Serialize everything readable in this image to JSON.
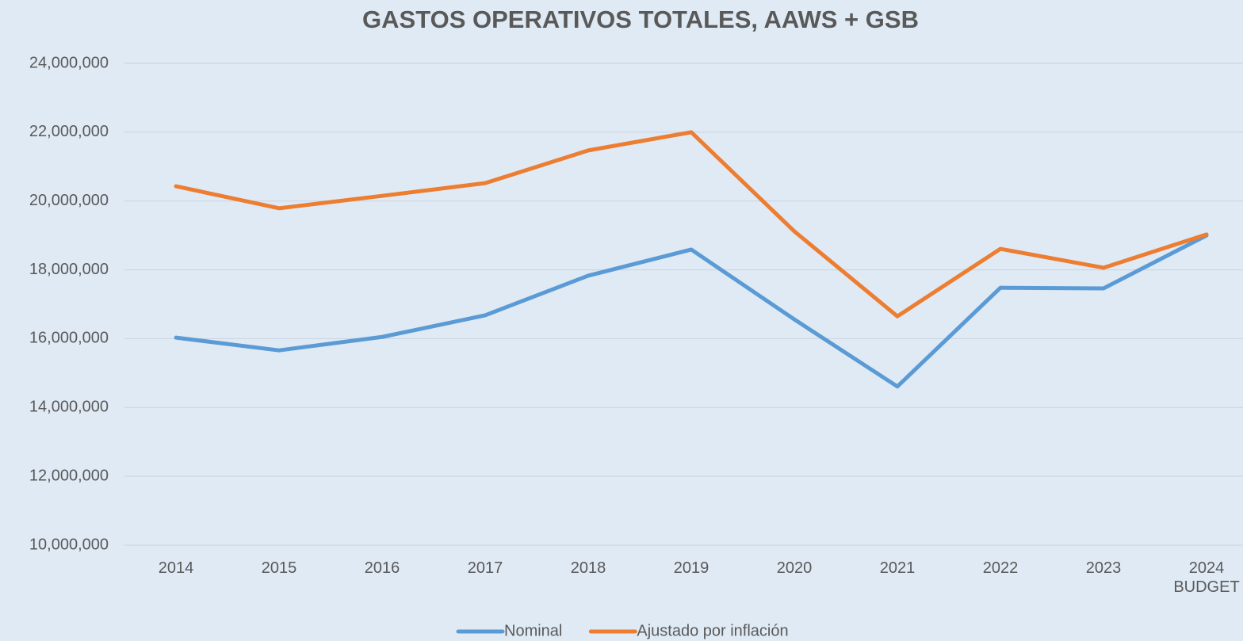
{
  "chart_data": {
    "type": "line",
    "title": "GASTOS OPERATIVOS TOTALES, AAWS + GSB",
    "categories": [
      "2014",
      "2015",
      "2016",
      "2017",
      "2018",
      "2019",
      "2020",
      "2021",
      "2022",
      "2023",
      "2024 BUDGET"
    ],
    "series": [
      {
        "name": "Nominal",
        "color": "#5b9bd5",
        "values": [
          16030000,
          15660000,
          16050000,
          16680000,
          17830000,
          18590000,
          16560000,
          14610000,
          17480000,
          17460000,
          19000000
        ]
      },
      {
        "name": "Ajustado por inflación",
        "color": "#ed7d31",
        "values": [
          20430000,
          19790000,
          20150000,
          20520000,
          21470000,
          22000000,
          19120000,
          16650000,
          18610000,
          18060000,
          19030000
        ]
      }
    ],
    "ylim": [
      10000000,
      24000000
    ],
    "yticks": [
      {
        "value": 10000000,
        "label": "10,000,000"
      },
      {
        "value": 12000000,
        "label": "12,000,000"
      },
      {
        "value": 14000000,
        "label": "14,000,000"
      },
      {
        "value": 16000000,
        "label": "16,000,000"
      },
      {
        "value": 18000000,
        "label": "18,000,000"
      },
      {
        "value": 20000000,
        "label": "20,000,000"
      },
      {
        "value": 22000000,
        "label": "22,000,000"
      },
      {
        "value": 24000000,
        "label": "24,000,000"
      }
    ],
    "grid": true,
    "legend": "bottom"
  }
}
